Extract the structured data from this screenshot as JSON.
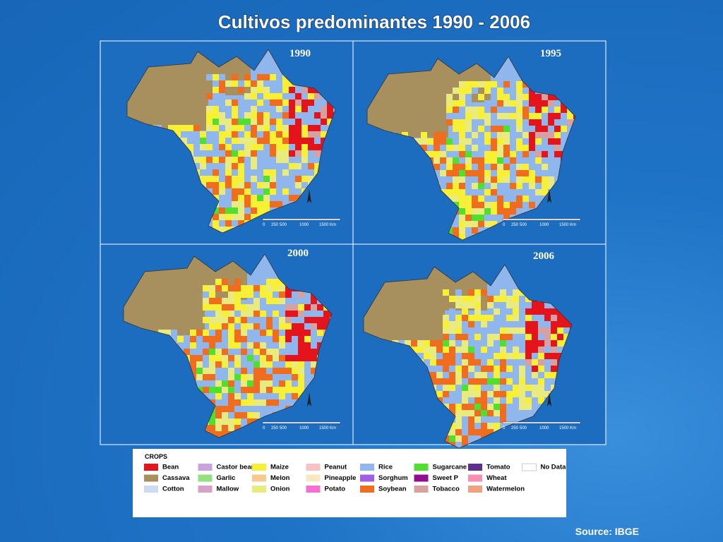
{
  "title": "Cultivos predominantes 1990 - 2006",
  "maps": [
    {
      "year": "1990"
    },
    {
      "year": "1995"
    },
    {
      "year": "2000"
    },
    {
      "year": "2006"
    }
  ],
  "scale_labels": [
    "0",
    "250",
    "500",
    "1000",
    "1500 Km"
  ],
  "legend": {
    "title": "CROPS",
    "items": [
      {
        "name": "Bean",
        "color": "#e3141b"
      },
      {
        "name": "Cassava",
        "color": "#a8905e"
      },
      {
        "name": "Cotton",
        "color": "#cddcf2"
      },
      {
        "name": "Castor beans",
        "color": "#c9a3dc"
      },
      {
        "name": "Garlic",
        "color": "#93e07f"
      },
      {
        "name": "Mallow",
        "color": "#d9a0c9"
      },
      {
        "name": "Maize",
        "color": "#f7f035"
      },
      {
        "name": "Melon",
        "color": "#f8c98f"
      },
      {
        "name": "Onion",
        "color": "#e9eb7e"
      },
      {
        "name": "Peanut",
        "color": "#f8c2c2"
      },
      {
        "name": "Pineapple",
        "color": "#f9e7c1"
      },
      {
        "name": "Potato",
        "color": "#f56fd2"
      },
      {
        "name": "Rice",
        "color": "#8fb7ee"
      },
      {
        "name": "Sorghum",
        "color": "#a05fe0"
      },
      {
        "name": "Soybean",
        "color": "#f06d1f"
      },
      {
        "name": "Sugarcane",
        "color": "#4fe02f"
      },
      {
        "name": "Sweet P",
        "color": "#8f0f8f"
      },
      {
        "name": "Tobacco",
        "color": "#d8a1a1"
      },
      {
        "name": "Tomato",
        "color": "#5f2f8f"
      },
      {
        "name": "Wheat",
        "color": "#f78fb0"
      },
      {
        "name": "Watermelon",
        "color": "#f0a17f"
      },
      {
        "name": "No Data",
        "color": "#ffffff"
      }
    ]
  },
  "source": "Source: IBGE"
}
